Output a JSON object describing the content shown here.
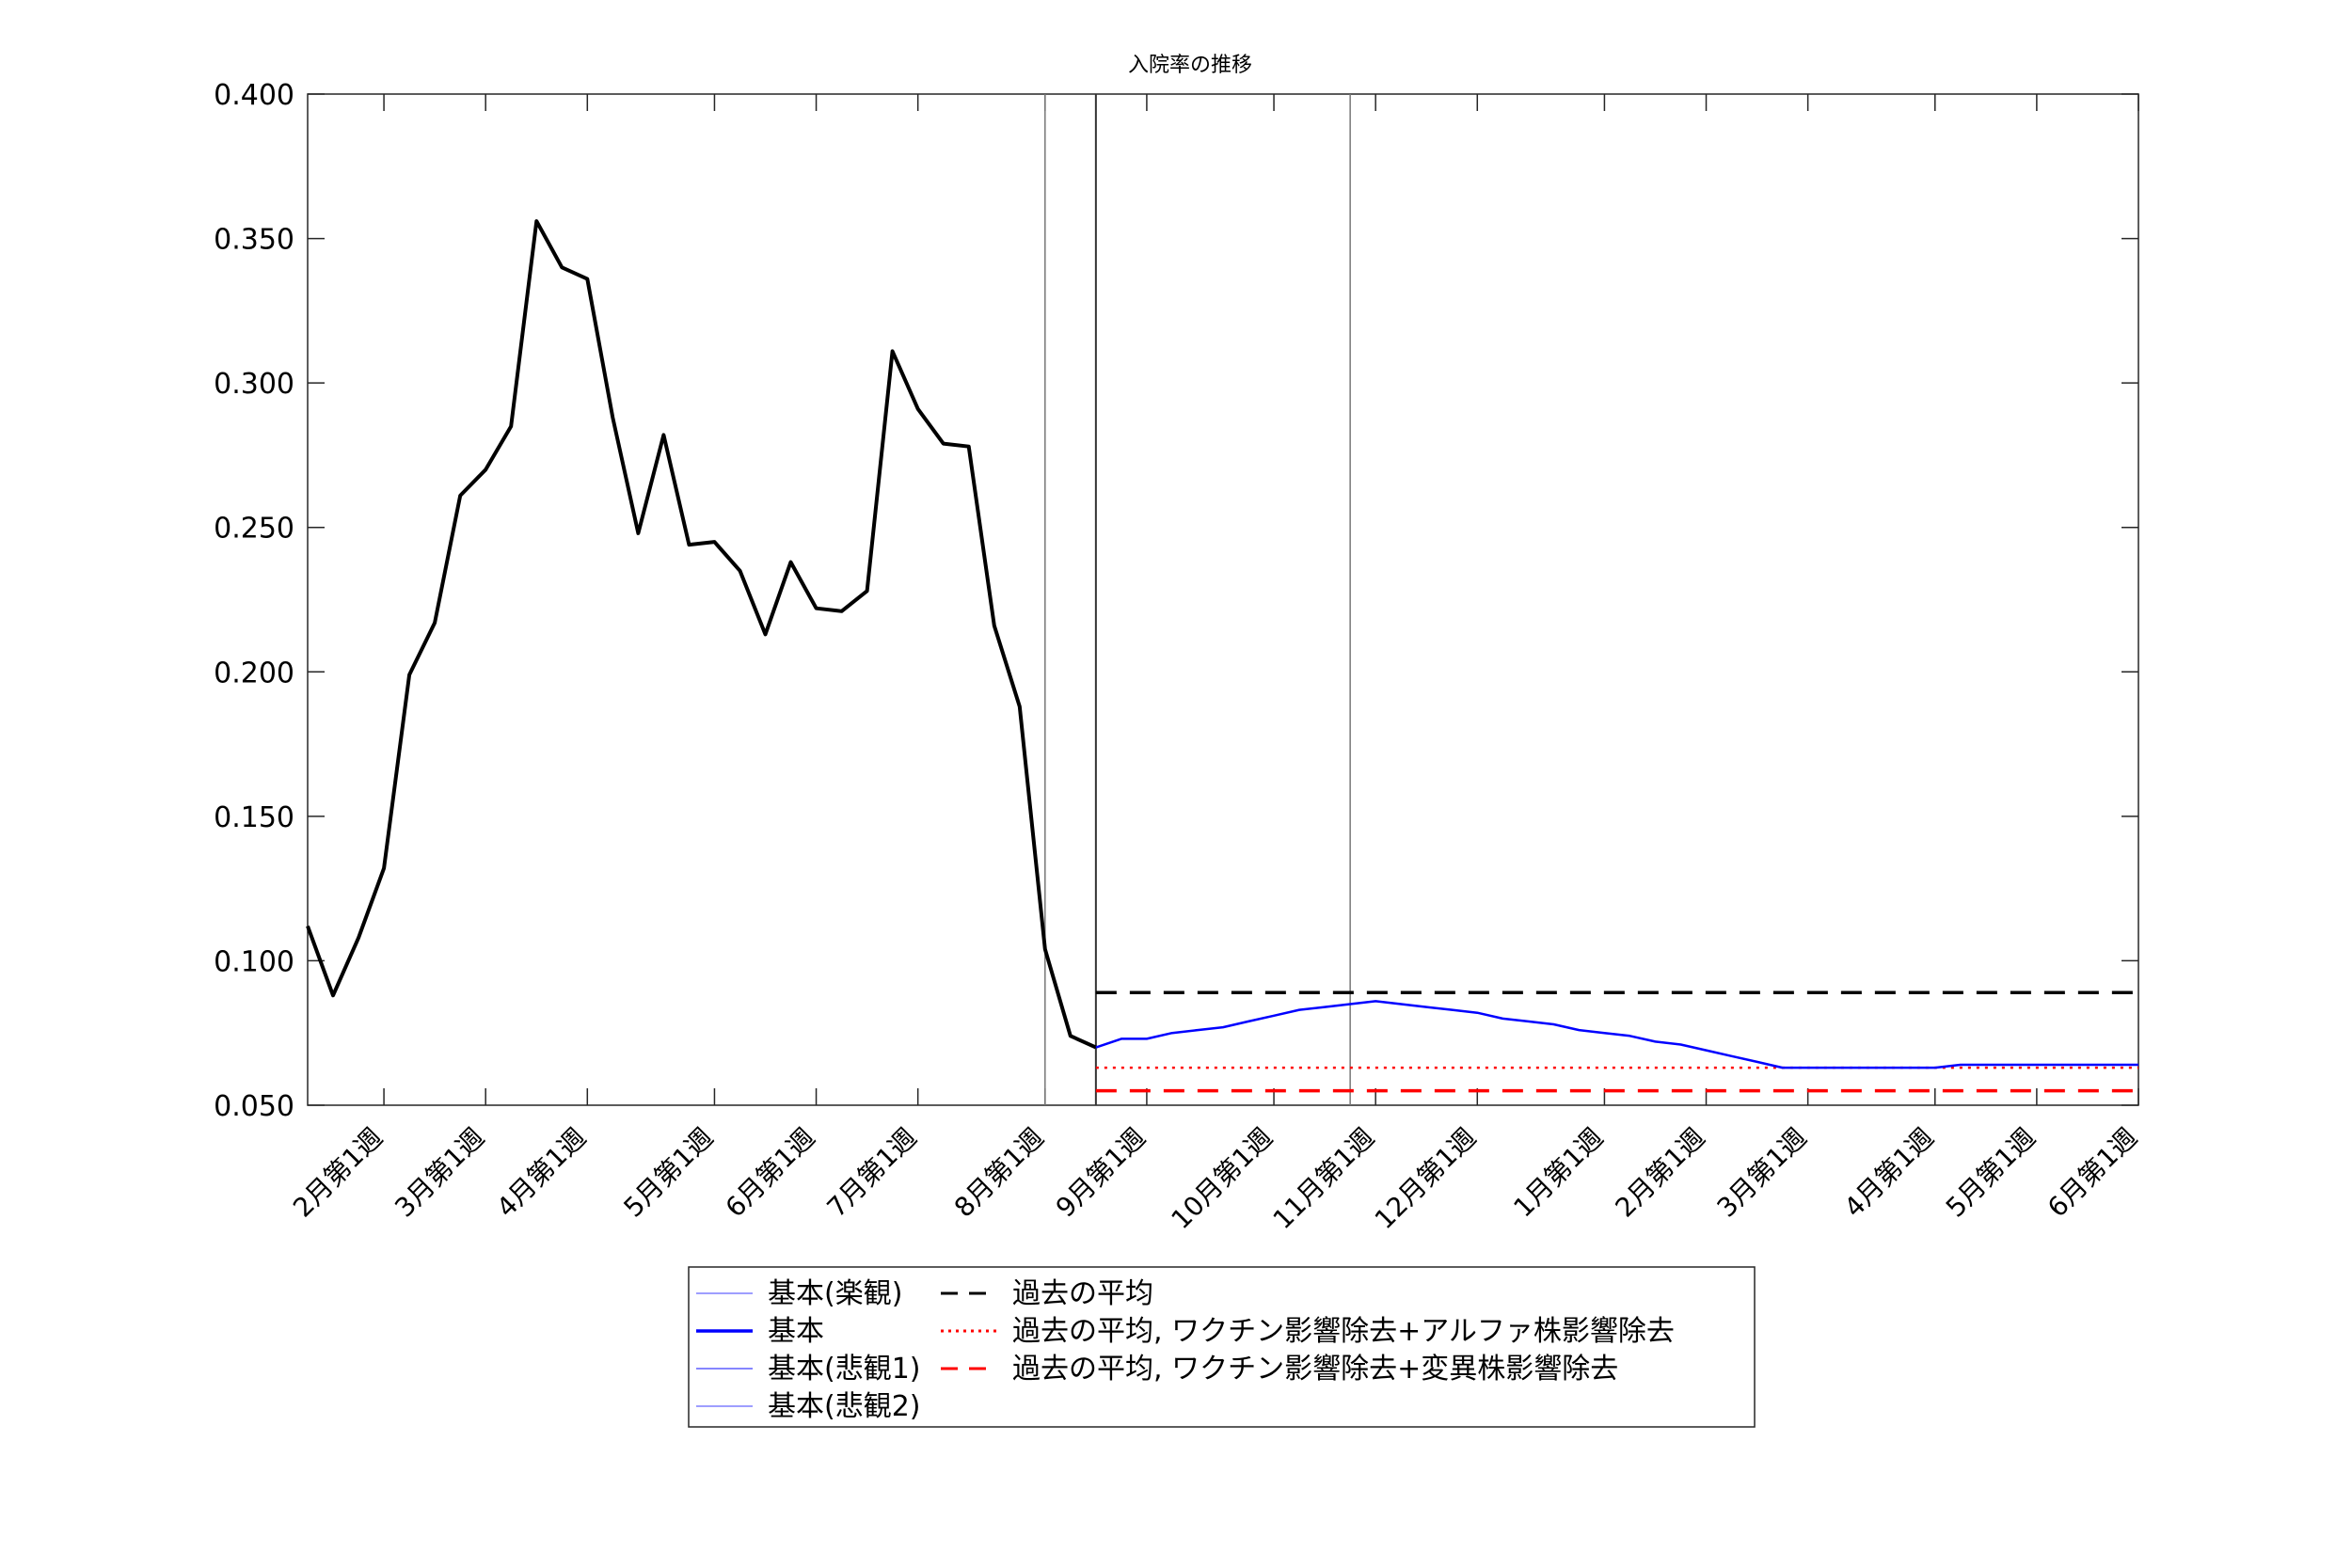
{
  "chart_data": {
    "type": "line",
    "title": "入院率の推移",
    "xlabel": "",
    "ylabel": "",
    "ylim": [
      0.05,
      0.4
    ],
    "y_ticks": [
      "0.050",
      "0.100",
      "0.150",
      "0.200",
      "0.250",
      "0.300",
      "0.350",
      "0.400"
    ],
    "y_tick_values": [
      0.05,
      0.1,
      0.15,
      0.2,
      0.25,
      0.3,
      0.35,
      0.4
    ],
    "x_axis_unit": "week index",
    "xlim": [
      0,
      72
    ],
    "x_ticks": [
      {
        "label": "2月第1週",
        "x": 3
      },
      {
        "label": "3月第1週",
        "x": 7
      },
      {
        "label": "4月第1週",
        "x": 11
      },
      {
        "label": "5月第1週",
        "x": 16
      },
      {
        "label": "6月第1週",
        "x": 20
      },
      {
        "label": "7月第1週",
        "x": 24
      },
      {
        "label": "8月第1週",
        "x": 29
      },
      {
        "label": "9月第1週",
        "x": 33
      },
      {
        "label": "10月第1週",
        "x": 38
      },
      {
        "label": "11月第1週",
        "x": 42
      },
      {
        "label": "12月第1週",
        "x": 46
      },
      {
        "label": "1月第1週",
        "x": 51
      },
      {
        "label": "2月第1週",
        "x": 55
      },
      {
        "label": "3月第1週",
        "x": 59
      },
      {
        "label": "4月第1週",
        "x": 64
      },
      {
        "label": "5月第1週",
        "x": 68
      },
      {
        "label": "6月第1週",
        "x": 72
      }
    ],
    "vertical_lines": [
      29,
      31,
      41
    ],
    "grid": false,
    "legend_position": "bottom-center",
    "legend": [
      {
        "name": "基本(楽観)",
        "color": "#7f7fff",
        "style": "solid"
      },
      {
        "name": "基本",
        "color": "#0000ff",
        "style": "solid"
      },
      {
        "name": "基本(悲観1)",
        "color": "#5f5fff",
        "style": "solid"
      },
      {
        "name": "基本(悲観2)",
        "color": "#7f7fff",
        "style": "solid"
      },
      {
        "name": "過去の平均",
        "color": "#000000",
        "style": "dashed"
      },
      {
        "name": "過去の平均, ワクチン影響除去+アルファ株影響除去",
        "color": "#ff0000",
        "style": "dotted"
      },
      {
        "name": "過去の平均, ワクチン影響除去+変異株影響除去",
        "color": "#ff0000",
        "style": "dashed"
      }
    ],
    "series": [
      {
        "name": "",
        "color": "#000000",
        "x": [
          0,
          1,
          2,
          3,
          4,
          5,
          6,
          7,
          8,
          9,
          10,
          11,
          12,
          13,
          14,
          15,
          16,
          17,
          18,
          19,
          20,
          21,
          22,
          23,
          24,
          25,
          26,
          27,
          28,
          29,
          30,
          31
        ],
        "values": [
          0.112,
          0.088,
          0.108,
          0.132,
          0.199,
          0.217,
          0.261,
          0.27,
          0.285,
          0.356,
          0.34,
          0.336,
          0.288,
          0.248,
          0.282,
          0.244,
          0.245,
          0.235,
          0.213,
          0.238,
          0.222,
          0.221,
          0.228,
          0.311,
          0.291,
          0.279,
          0.278,
          0.216,
          0.188,
          0.104,
          0.074,
          0.07
        ]
      },
      {
        "name": "基本",
        "color": "#0000ff",
        "x": [
          31,
          32,
          33,
          34,
          35,
          36,
          37,
          38,
          39,
          40,
          41,
          42,
          43,
          44,
          45,
          46,
          47,
          48,
          49,
          50,
          51,
          52,
          53,
          54,
          55,
          56,
          57,
          58,
          59,
          60,
          61,
          62,
          63,
          64,
          65,
          66,
          67,
          68,
          69,
          70,
          71,
          72
        ],
        "values": [
          0.07,
          0.073,
          0.073,
          0.075,
          0.076,
          0.077,
          0.079,
          0.081,
          0.083,
          0.084,
          0.085,
          0.086,
          0.085,
          0.084,
          0.083,
          0.082,
          0.08,
          0.079,
          0.078,
          0.076,
          0.075,
          0.074,
          0.072,
          0.071,
          0.069,
          0.067,
          0.065,
          0.063,
          0.063,
          0.063,
          0.063,
          0.063,
          0.063,
          0.063,
          0.064,
          0.064,
          0.064,
          0.064,
          0.064,
          0.064,
          0.064,
          0.064
        ]
      }
    ],
    "reference_lines": [
      {
        "name": "過去の平均",
        "y": 0.089,
        "x_start": 31,
        "x_end": 72,
        "color": "#000000",
        "style": "dashed"
      },
      {
        "name": "過去の平均, ワクチン影響除去+アルファ株影響除去",
        "y": 0.063,
        "x_start": 31,
        "x_end": 72,
        "color": "#ff0000",
        "style": "dotted"
      },
      {
        "name": "過去の平均, ワクチン影響除去+変異株影響除去",
        "y": 0.055,
        "x_start": 31,
        "x_end": 72,
        "color": "#ff0000",
        "style": "dashed"
      }
    ]
  }
}
